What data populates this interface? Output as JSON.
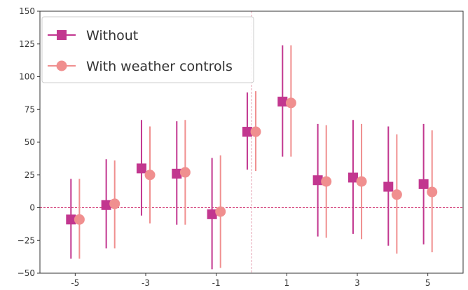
{
  "chart_data": {
    "type": "scatter",
    "title": "",
    "xlabel": "",
    "ylabel": "",
    "xlim": [
      -6.0,
      6.0
    ],
    "ylim": [
      -50,
      150
    ],
    "x_ticks": [
      -5,
      -3,
      -1,
      1,
      3,
      5
    ],
    "x_tick_labels": [
      "-5",
      "-3",
      "-1",
      "1",
      "3",
      "5"
    ],
    "y_ticks": [
      -50,
      -25,
      0,
      25,
      50,
      75,
      100,
      125,
      150
    ],
    "y_tick_labels": [
      "−50",
      "−25",
      "0",
      "25",
      "50",
      "75",
      "100",
      "125",
      "150"
    ],
    "grid": false,
    "legend_position": "top-left",
    "reference_lines": {
      "horizontal_y": 0,
      "vertical_x": 0
    },
    "x": [
      -5,
      -4,
      -3,
      -2,
      -1,
      0,
      1,
      2,
      3,
      4,
      5
    ],
    "series": [
      {
        "name": "Without",
        "marker": "square",
        "color": "#c2378f",
        "x_offset": -0.12,
        "y": [
          -9,
          2,
          30,
          26,
          -5,
          58,
          81,
          21,
          23,
          16,
          18
        ],
        "ci_low": [
          -39,
          -31,
          -6,
          -13,
          -47,
          29,
          39,
          -22,
          -20,
          -29,
          -28
        ],
        "ci_high": [
          22,
          37,
          67,
          66,
          38,
          88,
          124,
          64,
          67,
          62,
          64
        ]
      },
      {
        "name": "With weather controls",
        "marker": "circle",
        "color": "#f08f8f",
        "x_offset": 0.12,
        "y": [
          -9,
          3,
          25,
          27,
          -3,
          58,
          80,
          20,
          20,
          10,
          12
        ],
        "ci_low": [
          -39,
          -31,
          -12,
          -13,
          -46,
          28,
          39,
          -23,
          -24,
          -35,
          -34
        ],
        "ci_high": [
          22,
          36,
          62,
          67,
          40,
          89,
          124,
          63,
          64,
          56,
          59
        ]
      }
    ]
  }
}
